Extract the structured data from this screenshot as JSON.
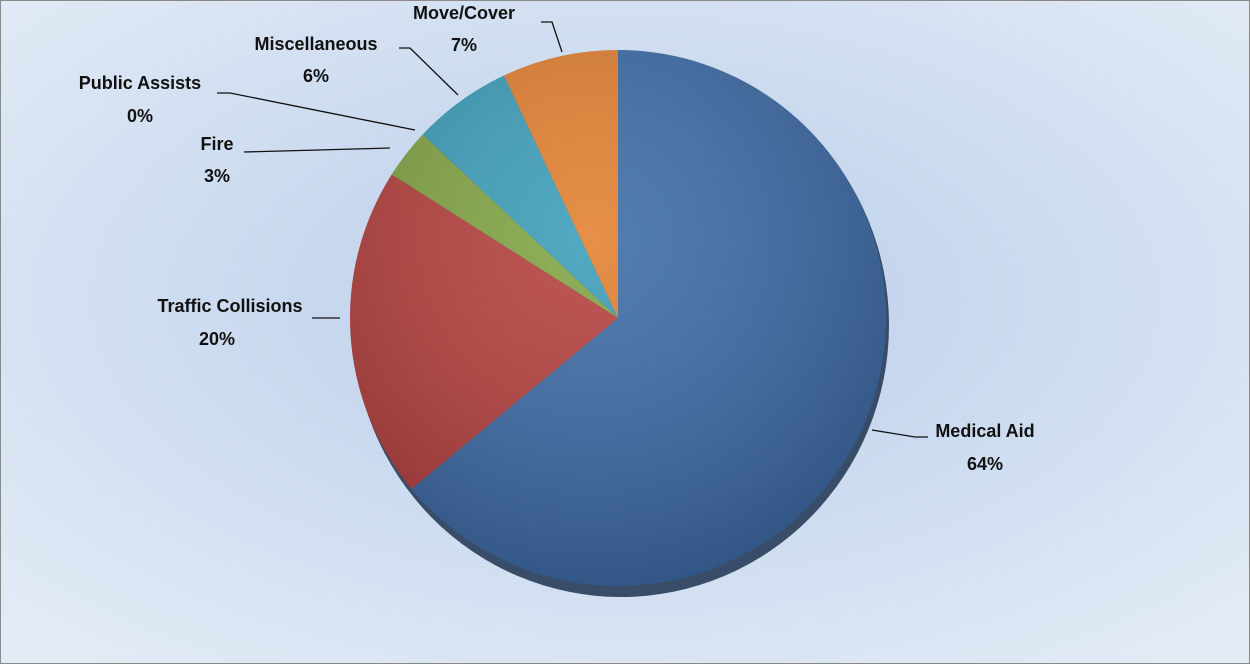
{
  "chart_data": {
    "type": "pie",
    "categories": [
      "Medical Aid",
      "Traffic Collisions",
      "Fire",
      "Public Assists",
      "Miscellaneous",
      "Move/Cover"
    ],
    "values": [
      64,
      20,
      3,
      0,
      6,
      7
    ],
    "value_labels": [
      "64%",
      "20%",
      "3%",
      "0%",
      "6%",
      "7%"
    ],
    "colors": [
      "#3b6aa6",
      "#b43f3c",
      "#80a442",
      "#6e4f93",
      "#3a9db9",
      "#e2802f"
    ]
  }
}
